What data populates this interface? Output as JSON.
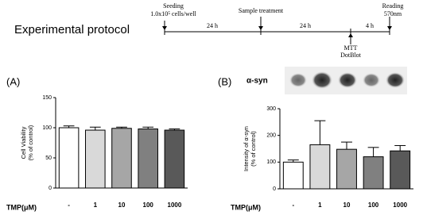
{
  "protocol": {
    "title": "Experimental protocol",
    "seeding": [
      "Seeding",
      "1.0x10⁵ cells/well"
    ],
    "treatment": "Sample treatment",
    "reading": [
      "Reading",
      "570nm"
    ],
    "assay": [
      "MTT",
      "DotBlot"
    ],
    "intervals": [
      "24 h",
      "24 h",
      "4 h"
    ]
  },
  "chart_data": [
    {
      "type": "bar",
      "panel_label": "(A)",
      "ylabel": [
        "Cell Viability",
        "(% of control)"
      ],
      "xlabel": "TMP(μM)",
      "categories": [
        "-",
        "1",
        "10",
        "100",
        "1000"
      ],
      "values": [
        100,
        96,
        99,
        98,
        96
      ],
      "errors": [
        3,
        5,
        2,
        3,
        2
      ],
      "colors": [
        "#ffffff",
        "#d9d9d9",
        "#a6a6a6",
        "#808080",
        "#595959"
      ],
      "ylim": [
        0,
        150
      ],
      "yticks": [
        0,
        50,
        100,
        150
      ]
    },
    {
      "type": "bar",
      "panel_label": "(B)",
      "blot_label": "α-syn",
      "ylabel": [
        "Intensity of α-syn",
        "(% of control)"
      ],
      "xlabel": "TMP(μM)",
      "categories": [
        "-",
        "1",
        "10",
        "100",
        "1000"
      ],
      "values": [
        100,
        165,
        148,
        120,
        142
      ],
      "errors": [
        8,
        90,
        27,
        35,
        20
      ],
      "colors": [
        "#ffffff",
        "#d9d9d9",
        "#a6a6a6",
        "#808080",
        "#595959"
      ],
      "ylim": [
        0,
        300
      ],
      "yticks": [
        0,
        100,
        200,
        300
      ]
    }
  ]
}
